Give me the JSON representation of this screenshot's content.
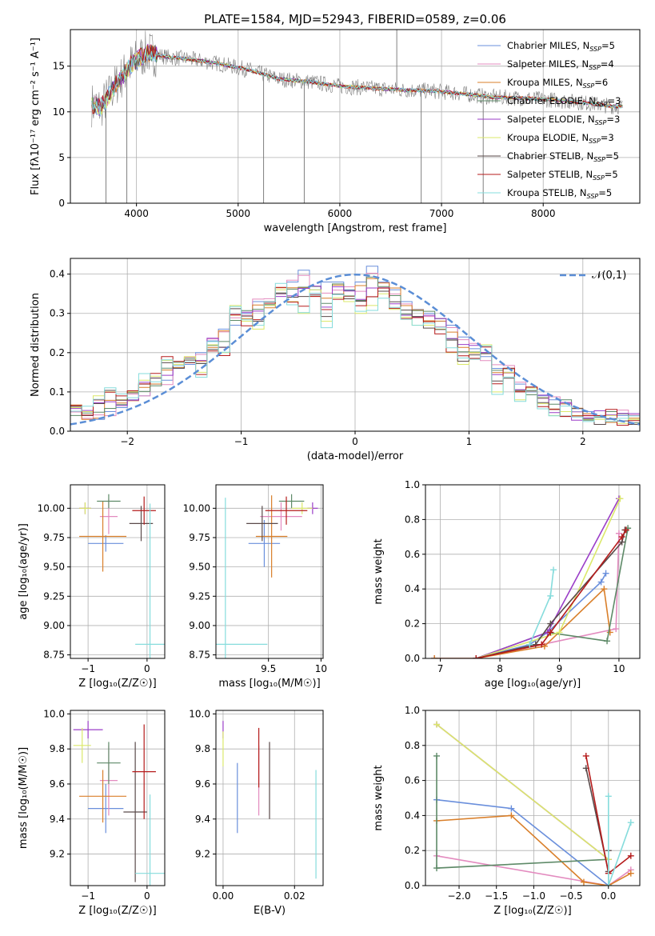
{
  "figure": {
    "title": "PLATE=1584, MJD=52943, FIBERID=0589, z=0.06"
  },
  "chart_data": [
    {
      "id": "spectrum",
      "type": "line",
      "xlabel": "wavelength [Angstrom, rest frame]",
      "ylabel": "Flux [fλ10⁻¹⁷ erg cm⁻² s⁻¹ A⁻¹]",
      "xlim": [
        3350,
        8950
      ],
      "ylim": [
        0,
        19
      ],
      "xticks": [
        4000,
        5000,
        6000,
        7000,
        8000
      ],
      "yticks": [
        0,
        5,
        10,
        15
      ],
      "legend_position": "top-right",
      "legend": [
        {
          "label": "Chabrier MILES, N_SSP=5",
          "color": "#6a8fdc"
        },
        {
          "label": "Salpeter MILES, N_SSP=4",
          "color": "#e38bbf"
        },
        {
          "label": "Kroupa MILES, N_SSP=6",
          "color": "#d97f2a"
        },
        {
          "label": "Chabrier ELODIE, N_SSP=3",
          "color": "#5e8a68"
        },
        {
          "label": "Salpeter ELODIE, N_SSP=3",
          "color": "#9b3ec8"
        },
        {
          "label": "Kroupa ELODIE, N_SSP=3",
          "color": "#dbe86a"
        },
        {
          "label": "Chabrier STELIB, N_SSP=5",
          "color": "#5a4a4a"
        },
        {
          "label": "Salpeter STELIB, N_SSP=5",
          "color": "#b51b1b"
        },
        {
          "label": "Kroupa STELIB, N_SSP=5",
          "color": "#86dcdc"
        }
      ],
      "continuum": {
        "x": [
          3500,
          3650,
          3800,
          3950,
          4100,
          4300,
          4500,
          4800,
          5100,
          5400,
          5700,
          6000,
          6300,
          6600,
          6900,
          7200,
          7500,
          7800,
          8100,
          8400,
          8700
        ],
        "y": [
          11,
          10.5,
          13,
          15.2,
          16.5,
          16,
          15.8,
          15.3,
          14.6,
          13.6,
          13.3,
          12.8,
          12.6,
          12.4,
          12.3,
          12.0,
          11.6,
          11.5,
          11.3,
          11.0,
          10.6
        ]
      },
      "observed_spikes": [
        {
          "x": 3700,
          "y": 0
        },
        {
          "x": 3905,
          "y": 0
        },
        {
          "x": 5250,
          "y": 0
        },
        {
          "x": 5650,
          "y": 0
        },
        {
          "x": 6560,
          "y": 19
        },
        {
          "x": 6800,
          "y": 0
        },
        {
          "x": 7410,
          "y": 0
        }
      ],
      "line_color_observed": "#808080"
    },
    {
      "id": "residuals",
      "type": "step",
      "xlabel": "(data-model)/error",
      "ylabel": "Normed distribution",
      "xlim": [
        -2.5,
        2.5
      ],
      "ylim": [
        0,
        0.44
      ],
      "xticks": [
        -2,
        -1,
        0,
        1,
        2
      ],
      "yticks": [
        0.0,
        0.1,
        0.2,
        0.3,
        0.4
      ],
      "gaussian_label": "𝒩(0,1)",
      "gaussian_color": "#5b8ed6",
      "bin_width": 0.1,
      "bin_start": -2.5,
      "bins_chabrier_miles": [
        0.05,
        0.04,
        0.03,
        0.05,
        0.06,
        0.08,
        0.09,
        0.12,
        0.13,
        0.16,
        0.17,
        0.2,
        0.23,
        0.26,
        0.27,
        0.3,
        0.33,
        0.32,
        0.35,
        0.38,
        0.41,
        0.36,
        0.38,
        0.38,
        0.36,
        0.38,
        0.42,
        0.38,
        0.36,
        0.33,
        0.31,
        0.3,
        0.28,
        0.27,
        0.24,
        0.21,
        0.19,
        0.16,
        0.15,
        0.12,
        0.1,
        0.09,
        0.08,
        0.07,
        0.05,
        0.05,
        0.04,
        0.03,
        0.04,
        0.04
      ],
      "bins_kroupa_elodie": [
        0.06,
        0.05,
        0.09,
        0.1,
        0.08,
        0.1,
        0.13,
        0.14,
        0.18,
        0.17,
        0.19,
        0.15,
        0.22,
        0.2,
        0.32,
        0.28,
        0.26,
        0.32,
        0.36,
        0.33,
        0.3,
        0.36,
        0.28,
        0.34,
        0.33,
        0.3,
        0.32,
        0.35,
        0.31,
        0.29,
        0.27,
        0.27,
        0.26,
        0.2,
        0.17,
        0.2,
        0.22,
        0.1,
        0.15,
        0.08,
        0.11,
        0.07,
        0.04,
        0.05,
        0.04,
        0.03,
        0.03,
        0.04,
        0.02,
        0.03
      ]
    },
    {
      "id": "age_vs_Z",
      "type": "errorbar",
      "xlabel": "Z [log₁₀(Z/Z☉)]",
      "ylabel": "age  [log₁₀(age/yr)]",
      "xlim": [
        -1.3,
        0.3
      ],
      "ylim": [
        8.72,
        10.2
      ],
      "xticks": [
        -1,
        0
      ],
      "yticks": [
        8.75,
        9.0,
        9.25,
        9.5,
        9.75,
        10.0
      ],
      "points": [
        {
          "x": -0.7,
          "y": 9.7,
          "xerr": 0.3,
          "yerr": 0.07,
          "color": "#6a8fdc"
        },
        {
          "x": -0.65,
          "y": 9.93,
          "xerr": 0.15,
          "yerr": 0.15,
          "color": "#e38bbf"
        },
        {
          "x": -0.75,
          "y": 9.76,
          "xerr": 0.4,
          "yerr": 0.3,
          "color": "#d97f2a"
        },
        {
          "x": -0.65,
          "y": 10.06,
          "xerr": 0.2,
          "yerr": 0.06,
          "color": "#5e8a68"
        },
        {
          "x": -1.05,
          "y": 10.0,
          "xerr": 0.1,
          "yerr": 0.05,
          "color": "#9b3ec8"
        },
        {
          "x": -1.05,
          "y": 10.0,
          "xerr": 0.1,
          "yerr": 0.05,
          "color": "#dbe86a"
        },
        {
          "x": -0.1,
          "y": 9.87,
          "xerr": 0.2,
          "yerr": 0.15,
          "color": "#5a4a4a"
        },
        {
          "x": -0.05,
          "y": 9.98,
          "xerr": 0.2,
          "yerr": 0.12,
          "color": "#b51b1b"
        },
        {
          "x": 0.05,
          "y": 8.84,
          "xerr": 0.25,
          "yerr": 1.2,
          "color": "#86dcdc"
        }
      ]
    },
    {
      "id": "age_vs_mass",
      "type": "errorbar",
      "xlabel": "mass [log₁₀(M/M☉)]",
      "ylabel": "",
      "xlim": [
        9.0,
        10.02
      ],
      "ylim": [
        8.72,
        10.2
      ],
      "xticks": [
        9.5,
        10.0
      ],
      "yticks": [
        8.75,
        9.0,
        9.25,
        9.5,
        9.75,
        10.0
      ],
      "points": [
        {
          "x": 9.46,
          "y": 9.7,
          "xerr": 0.15,
          "yerr": 0.2,
          "color": "#6a8fdc"
        },
        {
          "x": 9.62,
          "y": 9.93,
          "xerr": 0.2,
          "yerr": 0.12,
          "color": "#e38bbf"
        },
        {
          "x": 9.53,
          "y": 9.76,
          "xerr": 0.15,
          "yerr": 0.35,
          "color": "#d97f2a"
        },
        {
          "x": 9.72,
          "y": 10.06,
          "xerr": 0.12,
          "yerr": 0.06,
          "color": "#5e8a68"
        },
        {
          "x": 9.92,
          "y": 10.0,
          "xerr": 0.05,
          "yerr": 0.05,
          "color": "#9b3ec8"
        },
        {
          "x": 9.82,
          "y": 10.0,
          "xerr": 0.1,
          "yerr": 0.05,
          "color": "#dbe86a"
        },
        {
          "x": 9.44,
          "y": 9.87,
          "xerr": 0.15,
          "yerr": 0.15,
          "color": "#5a4a4a"
        },
        {
          "x": 9.67,
          "y": 9.98,
          "xerr": 0.2,
          "yerr": 0.12,
          "color": "#b51b1b"
        },
        {
          "x": 9.09,
          "y": 8.84,
          "xerr": 0.4,
          "yerr": 1.25,
          "color": "#86dcdc"
        }
      ]
    },
    {
      "id": "massweight_vs_age",
      "type": "line",
      "xlabel": "age  [log₁₀(age/yr)]",
      "ylabel": "mass weight",
      "xlim": [
        6.75,
        10.35
      ],
      "ylim": [
        0,
        1.0
      ],
      "xticks": [
        7,
        8,
        9,
        10
      ],
      "yticks": [
        0.0,
        0.2,
        0.4,
        0.6,
        0.8,
        1.0
      ],
      "series": [
        {
          "color": "#6a8fdc",
          "x": [
            6.9,
            7.6,
            8.5,
            8.8,
            9.7,
            9.78
          ],
          "y": [
            0.0,
            0.0,
            0.08,
            0.15,
            0.44,
            0.49
          ]
        },
        {
          "color": "#e38bbf",
          "x": [
            6.9,
            7.6,
            9.95,
            10.0
          ],
          "y": [
            0.0,
            0.0,
            0.17,
            0.72
          ]
        },
        {
          "color": "#d97f2a",
          "x": [
            6.9,
            7.6,
            8.75,
            9.75,
            9.85
          ],
          "y": [
            0.0,
            0.0,
            0.07,
            0.4,
            0.15
          ]
        },
        {
          "color": "#5e8a68",
          "x": [
            7.6,
            8.8,
            9.8,
            10.15
          ],
          "y": [
            0.0,
            0.15,
            0.1,
            0.75
          ]
        },
        {
          "color": "#9b3ec8",
          "x": [
            7.6,
            8.8,
            10.0
          ],
          "y": [
            0.0,
            0.15,
            0.92
          ]
        },
        {
          "color": "#dbe86a",
          "x": [
            7.6,
            9.0,
            10.02
          ],
          "y": [
            0.0,
            0.15,
            0.92
          ]
        },
        {
          "color": "#5a4a4a",
          "x": [
            7.6,
            8.6,
            8.85,
            10.05,
            10.1
          ],
          "y": [
            0.0,
            0.08,
            0.2,
            0.67,
            0.74
          ]
        },
        {
          "color": "#b51b1b",
          "x": [
            7.6,
            8.7,
            8.85,
            10.05,
            10.12
          ],
          "y": [
            0.0,
            0.08,
            0.15,
            0.7,
            0.74
          ]
        },
        {
          "color": "#86dcdc",
          "x": [
            8.5,
            8.85,
            8.9
          ],
          "y": [
            0.08,
            0.36,
            0.51
          ]
        }
      ]
    },
    {
      "id": "mass_vs_Z",
      "type": "errorbar",
      "xlabel": "Z [log₁₀(Z/Z☉)]",
      "ylabel": "mass [log₁₀(M/M☉)]",
      "xlim": [
        -1.3,
        0.3
      ],
      "ylim": [
        9.02,
        10.02
      ],
      "xticks": [
        -1,
        0
      ],
      "yticks": [
        9.2,
        9.4,
        9.6,
        9.8,
        10.0
      ],
      "points": [
        {
          "x": -0.7,
          "y": 9.46,
          "xerr": 0.3,
          "yerr": 0.14,
          "color": "#6a8fdc"
        },
        {
          "x": -0.65,
          "y": 9.62,
          "xerr": 0.15,
          "yerr": 0.2,
          "color": "#e38bbf"
        },
        {
          "x": -0.75,
          "y": 9.53,
          "xerr": 0.4,
          "yerr": 0.15,
          "color": "#d97f2a"
        },
        {
          "x": -0.65,
          "y": 9.72,
          "xerr": 0.2,
          "yerr": 0.12,
          "color": "#5e8a68"
        },
        {
          "x": -1.0,
          "y": 9.91,
          "xerr": 0.25,
          "yerr": 0.05,
          "color": "#9b3ec8"
        },
        {
          "x": -1.1,
          "y": 9.82,
          "xerr": 0.15,
          "yerr": 0.1,
          "color": "#dbe86a"
        },
        {
          "x": -0.2,
          "y": 9.44,
          "xerr": 0.2,
          "yerr": 0.4,
          "color": "#5a4a4a"
        },
        {
          "x": -0.05,
          "y": 9.67,
          "xerr": 0.2,
          "yerr": 0.27,
          "color": "#b51b1b"
        },
        {
          "x": 0.05,
          "y": 9.09,
          "xerr": 0.25,
          "yerr": 0.45,
          "color": "#86dcdc"
        }
      ]
    },
    {
      "id": "mass_vs_ebv",
      "type": "errorbar",
      "xlabel": "E(B-V)",
      "ylabel": "",
      "xlim": [
        -0.002,
        0.028
      ],
      "ylim": [
        9.02,
        10.02
      ],
      "xticks": [
        0.0,
        0.02
      ],
      "xtick_labels": [
        "0.00",
        "0.02"
      ],
      "yticks": [
        9.2,
        9.4,
        9.6,
        9.8,
        10.0
      ],
      "points": [
        {
          "x": 0.004,
          "y": 9.52,
          "xerr": 0,
          "yerr": 0.2,
          "color": "#6a8fdc"
        },
        {
          "x": 0.01,
          "y": 9.62,
          "xerr": 0,
          "yerr": 0.2,
          "color": "#e38bbf"
        },
        {
          "x": 0.0,
          "y": 9.91,
          "xerr": 0,
          "yerr": 0.05,
          "color": "#9b3ec8"
        },
        {
          "x": 0.0,
          "y": 9.8,
          "xerr": 0,
          "yerr": 0.1,
          "color": "#dbe86a"
        },
        {
          "x": 0.013,
          "y": 9.62,
          "xerr": 0,
          "yerr": 0.22,
          "color": "#5a4a4a"
        },
        {
          "x": 0.01,
          "y": 9.75,
          "xerr": 0,
          "yerr": 0.17,
          "color": "#b51b1b"
        },
        {
          "x": 0.026,
          "y": 9.37,
          "xerr": 0,
          "yerr": 0.31,
          "color": "#86dcdc"
        }
      ]
    },
    {
      "id": "massweight_vs_Z",
      "type": "line",
      "xlabel": "Z [log₁₀(Z/Z☉)]",
      "ylabel": "mass weight",
      "xlim": [
        -2.45,
        0.42
      ],
      "ylim": [
        0,
        1.0
      ],
      "xticks": [
        -2.0,
        -1.5,
        -1.0,
        -0.5,
        0.0
      ],
      "xtick_labels": [
        "−2.0",
        "−1.5",
        "−1.0",
        "−0.5",
        "0.0"
      ],
      "yticks": [
        0.0,
        0.2,
        0.4,
        0.6,
        0.8,
        1.0
      ],
      "series": [
        {
          "color": "#6a8fdc",
          "x": [
            -2.3,
            -1.3,
            0.0
          ],
          "y": [
            0.49,
            0.44,
            0.0
          ]
        },
        {
          "color": "#e38bbf",
          "x": [
            -2.3,
            0.0,
            0.3
          ],
          "y": [
            0.17,
            0.0,
            0.09
          ]
        },
        {
          "color": "#d97f2a",
          "x": [
            -2.3,
            -1.3,
            -0.33,
            0.0,
            0.3
          ],
          "y": [
            0.37,
            0.4,
            0.02,
            0.0,
            0.07
          ]
        },
        {
          "color": "#5e8a68",
          "x": [
            -2.3,
            -2.3,
            0.0,
            0.0
          ],
          "y": [
            0.74,
            0.1,
            0.15,
            0.0
          ]
        },
        {
          "color": "#9b3ec8",
          "x": [
            -2.3,
            0.0
          ],
          "y": [
            0.92,
            0.15
          ]
        },
        {
          "color": "#dbe86a",
          "x": [
            -2.3,
            0.0
          ],
          "y": [
            0.92,
            0.15
          ]
        },
        {
          "color": "#5a4a4a",
          "x": [
            -0.3,
            0.0,
            0.0
          ],
          "y": [
            0.67,
            0.08,
            0.2
          ]
        },
        {
          "color": "#b51b1b",
          "x": [
            -0.3,
            0.0,
            0.3
          ],
          "y": [
            0.74,
            0.07,
            0.17
          ]
        },
        {
          "color": "#86dcdc",
          "x": [
            0.0,
            0.0,
            0.3
          ],
          "y": [
            0.51,
            0.0,
            0.36
          ]
        }
      ]
    }
  ]
}
